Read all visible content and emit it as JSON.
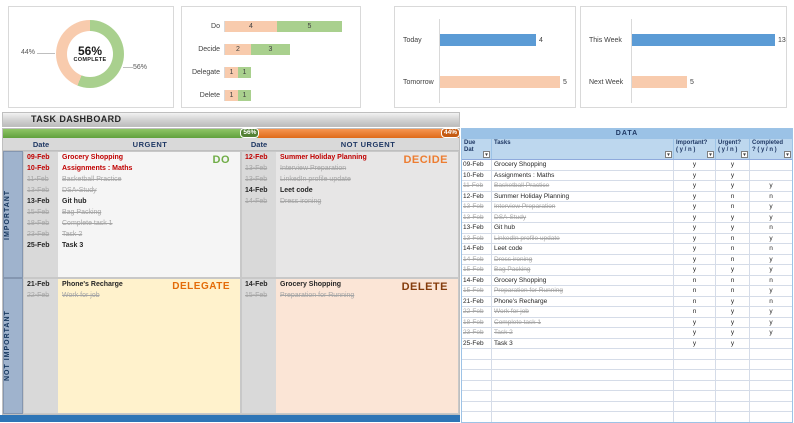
{
  "app": {
    "title": "TASK DASHBOARD"
  },
  "colors": {
    "green": "#a9d08e",
    "peach": "#f8cbad",
    "blue": "#5b9bd5",
    "accent_green": "#70ad47",
    "accent_orange": "#ed7d31"
  },
  "chart_data": {
    "completion": {
      "type": "donut",
      "percent": 56,
      "center_value": "56%",
      "center_label": "COMPLETE",
      "left_label": "44%",
      "right_label": "56%"
    },
    "quadrant_counts": {
      "type": "stacked-bar",
      "categories": [
        "Do",
        "Decide",
        "Delegate",
        "Delete"
      ],
      "series": [
        {
          "name": "pending",
          "color": "#f8cbad",
          "values": [
            4,
            2,
            1,
            1
          ]
        },
        {
          "name": "completed",
          "color": "#a9d08e",
          "values": [
            5,
            3,
            1,
            1
          ]
        }
      ]
    },
    "due": {
      "type": "bar",
      "categories": [
        "Today",
        "Tomorrow"
      ],
      "values": [
        4,
        5
      ],
      "colors": [
        "#5b9bd5",
        "#f8cbad"
      ]
    },
    "week": {
      "type": "bar",
      "categories": [
        "This Week",
        "Next Week"
      ],
      "values": [
        13,
        5
      ],
      "colors": [
        "#5b9bd5",
        "#f8cbad"
      ]
    }
  },
  "matrix": {
    "progress_bar": {
      "complete_pct": 56,
      "complete_label": "56%",
      "incomplete_pct": 44,
      "incomplete_label": "44%"
    },
    "headers": {
      "date_left": "Date",
      "urgent": "URGENT",
      "date_right": "Date",
      "not_urgent": "NOT URGENT"
    },
    "side": {
      "important": "IMPORTANT",
      "not_important": "NOT IMPORTANT"
    },
    "quadrants": [
      {
        "key": "do",
        "label": "DO",
        "tasks": [
          {
            "date": "09-Feb",
            "name": "Grocery Shopping",
            "status": "overdue"
          },
          {
            "date": "10-Feb",
            "name": "Assignments : Maths",
            "status": "overdue"
          },
          {
            "date": "11-Feb",
            "name": "Basketball Practice",
            "status": "done"
          },
          {
            "date": "13-Feb",
            "name": "DSA-Study",
            "status": "done"
          },
          {
            "date": "13-Feb",
            "name": "Git hub",
            "status": "open"
          },
          {
            "date": "15-Feb",
            "name": "Bag Packing",
            "status": "done"
          },
          {
            "date": "18-Feb",
            "name": "Complete task 1",
            "status": "done"
          },
          {
            "date": "23-Feb",
            "name": "Task 2",
            "status": "done"
          },
          {
            "date": "25-Feb",
            "name": "Task 3",
            "status": "open"
          }
        ]
      },
      {
        "key": "decide",
        "label": "DECIDE",
        "tasks": [
          {
            "date": "12-Feb",
            "name": "Summer Holiday Planning",
            "status": "overdue"
          },
          {
            "date": "13-Feb",
            "name": "Interview Preparation",
            "status": "done"
          },
          {
            "date": "13-Feb",
            "name": "LinkedIn profile update",
            "status": "done"
          },
          {
            "date": "14-Feb",
            "name": "Leet code",
            "status": "open"
          },
          {
            "date": "14-Feb",
            "name": "Dress ironing",
            "status": "done"
          }
        ]
      },
      {
        "key": "delegate",
        "label": "DELEGATE",
        "tasks": [
          {
            "date": "21-Feb",
            "name": "Phone's Recharge",
            "status": "open"
          },
          {
            "date": "22-Feb",
            "name": "Work for job",
            "status": "done"
          }
        ]
      },
      {
        "key": "delete",
        "label": "DELETE",
        "tasks": [
          {
            "date": "14-Feb",
            "name": "Grocery Shopping",
            "status": "open"
          },
          {
            "date": "15-Feb",
            "name": "Preparation for Running",
            "status": "done"
          }
        ]
      }
    ]
  },
  "data_table": {
    "title": "DATA",
    "columns": [
      "Due Dat",
      "Tasks",
      "Important? ( y / n )",
      "Urgent? ( y / n )",
      "Completed ? ( y / n )"
    ],
    "rows": [
      {
        "date": "09-Feb",
        "task": "Grocery Shopping",
        "important": "y",
        "urgent": "y",
        "completed": "",
        "done": false
      },
      {
        "date": "10-Feb",
        "task": "Assignments : Maths",
        "important": "y",
        "urgent": "y",
        "completed": "",
        "done": false
      },
      {
        "date": "11-Feb",
        "task": "Basketball Practice",
        "important": "y",
        "urgent": "y",
        "completed": "y",
        "done": true
      },
      {
        "date": "12-Feb",
        "task": "Summer Holiday Planning",
        "important": "y",
        "urgent": "n",
        "completed": "n",
        "done": false
      },
      {
        "date": "13-Feb",
        "task": "Interview Preparation",
        "important": "y",
        "urgent": "n",
        "completed": "y",
        "done": true
      },
      {
        "date": "13-Feb",
        "task": "DSA-Study",
        "important": "y",
        "urgent": "y",
        "completed": "y",
        "done": true
      },
      {
        "date": "13-Feb",
        "task": "Git hub",
        "important": "y",
        "urgent": "y",
        "completed": "n",
        "done": false
      },
      {
        "date": "13-Feb",
        "task": "LinkedIn profile update",
        "important": "y",
        "urgent": "n",
        "completed": "y",
        "done": true
      },
      {
        "date": "14-Feb",
        "task": "Leet code",
        "important": "y",
        "urgent": "n",
        "completed": "n",
        "done": false
      },
      {
        "date": "14-Feb",
        "task": "Dress ironing",
        "important": "y",
        "urgent": "n",
        "completed": "y",
        "done": true
      },
      {
        "date": "15-Feb",
        "task": "Bag Packing",
        "important": "y",
        "urgent": "y",
        "completed": "y",
        "done": true
      },
      {
        "date": "14-Feb",
        "task": "Grocery Shopping",
        "important": "n",
        "urgent": "n",
        "completed": "n",
        "done": false
      },
      {
        "date": "15-Feb",
        "task": "Preparation for Running",
        "important": "n",
        "urgent": "n",
        "completed": "y",
        "done": true
      },
      {
        "date": "21-Feb",
        "task": "Phone's Recharge",
        "important": "n",
        "urgent": "y",
        "completed": "n",
        "done": false
      },
      {
        "date": "22-Feb",
        "task": "Work for job",
        "important": "n",
        "urgent": "y",
        "completed": "y",
        "done": true
      },
      {
        "date": "18-Feb",
        "task": "Complete task 1",
        "important": "y",
        "urgent": "y",
        "completed": "y",
        "done": true
      },
      {
        "date": "23-Feb",
        "task": "Task 2",
        "important": "y",
        "urgent": "y",
        "completed": "y",
        "done": true
      },
      {
        "date": "25-Feb",
        "task": "Task 3",
        "important": "y",
        "urgent": "y",
        "completed": "",
        "done": false
      }
    ]
  }
}
